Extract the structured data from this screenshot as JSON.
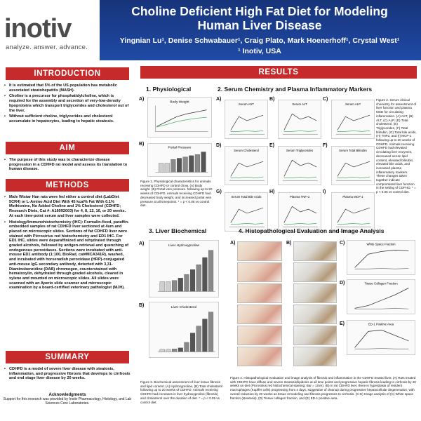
{
  "header": {
    "logo_text": "inotiv",
    "logo_tagline": "analyze. answer. advance.",
    "title_line1": "Choline Deficient High Fat Diet for Modeling",
    "title_line2": "Human Liver Disease",
    "authors": "Yingnian Lu¹, Denise Schwabauer¹, Craig Plato, Mark Hoenerhoff¹, Crystal West¹",
    "affiliation": "¹ Inotiv, USA",
    "band_color": "#1f4aa6",
    "accent_color": "#c72a2a"
  },
  "introduction": {
    "heading": "INTRODUCTION",
    "bullets": [
      "It is estimated that 5% of the US population has metabolic associated steatohepatitis (MASH).",
      "Choline is a precursor for phosphatidylcholine, which is required for the assembly and secretion of very-low-density lipoproteins which transport triglycerides and cholesterol out of the liver.",
      "Without sufficient choline, triglycerides and cholesterol accumulate in hepatocytes, leading to hepatic steatosis."
    ]
  },
  "aim": {
    "heading": "AIM",
    "bullets": [
      "The purpose of this study was to characterize disease progression in a CDHFD rat model and assess its translation to human disease."
    ]
  },
  "methods": {
    "heading": "METHODS",
    "bullets": [
      "Male Wistar Han rats were fed either a control diet (LabDiet 5CR4) or L-Amino Acid Diet With 45 kcal% Fat With 0.1% Methionine, No Added Choline and 1% Cholesterol (CDHFD; Research Diets, Cat #: A16092003) for 4, 8, 12, 16, or 20 weeks. At each time-point serum and liver samples were collected.",
      "Histology/Immunohistochemistry (IHC): Formalin-fixed, paraffin-embedded samples of rat CDHFD liver sectioned at 4um and placed on microscopic slides. Sections of fat CDHFD liver were stained with Picrosirius red histochemistry and ED1 IHC. For ED1 IHC, slides were deparaffinized and rehydrated through graded alcohols, followed by antigen-retrieval and quenching of endogenous peroxidases. Sections were incubated with anti-mouse ED1 antibody (1:100, BioRad, cat#MCA341R), washed, and incubated with horseradish peroxidase (HRP)-conjugated anti-mouse IgG secondary antibody, detected with 3,31-Diaminobenzidine (DAB) chromogen, counterstained with hematoxylin, dehydrated through graded alcohols, cleared in xylene and mounted on microscopic slides. All slides were scanned with an Aperio slide scanner and microscopic examination by a board-certified veterinary pathologist (MJH)."
    ]
  },
  "summary": {
    "heading": "SUMMARY",
    "bullets": [
      "CDHFD is a model of severe liver disease with steatosis, inflammation, and progressive fibrosis that develops to cirrhosis and end stage liver disease by 20 weeks."
    ]
  },
  "acknowledgments": {
    "heading": "Acknowledgments",
    "text": "Support for this research was provided by Inotiv Pharmacology, Histology, and Lab Sciences Core Laboratories."
  },
  "results": {
    "heading": "RESULTS",
    "sec1": "1. Physiological",
    "sec2": "2. Serum Chemistry and Plasma Inflammatory Markers",
    "sec3": "3. Liver Biochemical",
    "sec4": "4. Histopathological Evaluation and Image Analysis",
    "fig1_a_title": "Body Weight",
    "fig1_b_title": "Portal Pressure",
    "fig1_caption": "Figure 1. Physiological characteristics for animals receiving CDHFD or control chow. (A) Body weight. (B) Portal vein pressure. following up to 20 weeks of CDHFD. Animals receiving CDHFD had decreased body weight, and increased portal vein pressure at all timepoints. * = p < 0.05 vs control diet.",
    "fig2_titles": [
      "Serum AST",
      "Serum ALT",
      "Serum ALP",
      "Serum Cholesterol",
      "Serum Triglycerides",
      "Serum Total Bilirubin",
      "Serum Total Bile Acids",
      "Plasma TNF-α",
      "Plasma MCP-1"
    ],
    "fig2_caption": "Figure 2. Serum clinical chemistry for assessment of liver function and plasma MSD for circulating inflammation. (A) AST, (B) ALT, (C) ALP, (D) Total cholesterol, (E) Triglycerides, (F) Total bilirubin, (G) Total bile acids, (H) TNFα, and (I) MCP-1 following up to 20 weeks of CDHFD. Animals receiving CDHFD had elevated circulating liver enzymes, decreased serum lipid content, elevated bilirubin, elevated bile acids, and increased plasma inflammatory markers. These changes taken together indicate compromised liver function in the setting of CDFHD. * = p < 0.05 vs control diet.",
    "fig3_a_title": "Liver Hydroxyproline",
    "fig3_b_title": "Liver Cholesterol",
    "fig3_caption": "Figure 3. Biochemical assessment of liver tissue fibrosis and lipid content. (A) Hydroxyproline, (B) Total cholesterol following up to 20 weeks of CDHFD. Animals receiving CDHFD had increases in liver hydroxyproline (fibrosis) and cholesterol over the duration of diet. * = p < 0.05 vs control diet.",
    "fig4_c_title": "White Space Fraction",
    "fig4_d_title": "Tissue Collagen Fraction",
    "fig4_e_title": "ED-1 Positive Area",
    "fig4_caption": "Figure 4. Histopathological evaluation and image analysis of fibrosis and inflammation in the CDHFD treated liver. (A) Rats treated with CDHFD have diffuse and severe steatosis/lipidosis at all time points and progressive hepatic fibrosis leading to cirrhosis by 20 weeks on diet (Picrosirius red histochemical staining; Bar = 1mm). (B) In rat CDHFD liver, there is hyperplasia of resident macrophages (Kupffer cells) progressing from 4 days, suggestive of cleanup during progressive hepatocellular degeneration, with overall reduction by 20 weeks as tissue remodeling and fibrosis progresses to cirrhosis. (C-E) Image analysis of (C) White space fraction (steatosis), (D) Tissue collagen fraction, and (E) ED-1 positive area.",
    "panel_labels": [
      "A)",
      "B)",
      "C)",
      "D)",
      "E)",
      "F)",
      "G)",
      "H)",
      "I)"
    ]
  },
  "chart_data": [
    {
      "type": "line",
      "title": "Body Weight",
      "series": [
        {
          "values": [
            250,
            300,
            350,
            380,
            400,
            420
          ]
        },
        {
          "values": [
            245,
            270,
            300,
            320,
            335,
            345
          ]
        }
      ]
    },
    {
      "type": "bar",
      "title": "Portal Pressure",
      "values": [
        7,
        7,
        10,
        11,
        12,
        13,
        14,
        16
      ]
    },
    {
      "type": "bar",
      "title": "Liver Hydroxyproline",
      "values": [
        40,
        40,
        45,
        55,
        70,
        90,
        110,
        140,
        170
      ]
    },
    {
      "type": "bar",
      "title": "Liver Cholesterol",
      "values": [
        5,
        5,
        6,
        8,
        20,
        40,
        55,
        70,
        85
      ]
    }
  ]
}
